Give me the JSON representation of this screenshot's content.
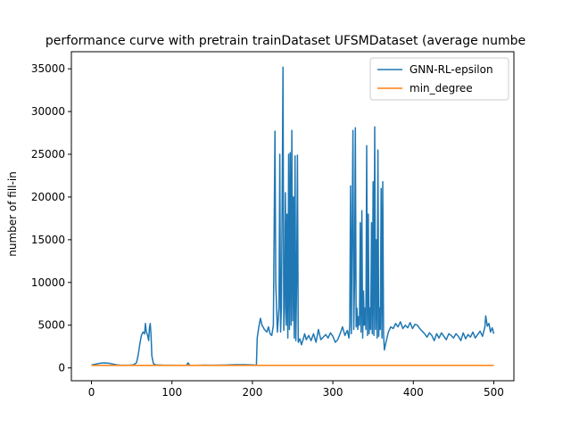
{
  "chart_data": {
    "type": "line",
    "title": "performance curve with pretrain trainDataset UFSMDataset (average numbe",
    "xlabel": "",
    "ylabel": "number of fill-in",
    "xlim": [
      -25,
      525
    ],
    "ylim": [
      -1500,
      37000
    ],
    "xticks": [
      0,
      100,
      200,
      300,
      400,
      500
    ],
    "yticks": [
      0,
      5000,
      10000,
      15000,
      20000,
      25000,
      30000,
      35000
    ],
    "grid": false,
    "legend_position": "top-right",
    "series": [
      {
        "name": "GNN-RL-epsilon",
        "color": "#1f77b4",
        "points": [
          [
            0,
            350
          ],
          [
            4,
            420
          ],
          [
            8,
            500
          ],
          [
            12,
            560
          ],
          [
            16,
            590
          ],
          [
            20,
            560
          ],
          [
            24,
            500
          ],
          [
            28,
            420
          ],
          [
            32,
            360
          ],
          [
            36,
            330
          ],
          [
            40,
            320
          ],
          [
            44,
            320
          ],
          [
            48,
            330
          ],
          [
            52,
            350
          ],
          [
            56,
            600
          ],
          [
            58,
            1500
          ],
          [
            60,
            2800
          ],
          [
            62,
            3800
          ],
          [
            64,
            4200
          ],
          [
            66,
            4000
          ],
          [
            67,
            5200
          ],
          [
            68,
            4300
          ],
          [
            70,
            3700
          ],
          [
            71,
            3200
          ],
          [
            72,
            4700
          ],
          [
            73,
            5200
          ],
          [
            74,
            3800
          ],
          [
            75,
            1400
          ],
          [
            77,
            500
          ],
          [
            80,
            350
          ],
          [
            90,
            320
          ],
          [
            100,
            320
          ],
          [
            110,
            300
          ],
          [
            118,
            310
          ],
          [
            120,
            600
          ],
          [
            122,
            300
          ],
          [
            130,
            310
          ],
          [
            140,
            330
          ],
          [
            150,
            320
          ],
          [
            160,
            330
          ],
          [
            170,
            350
          ],
          [
            180,
            380
          ],
          [
            190,
            380
          ],
          [
            200,
            360
          ],
          [
            205,
            320
          ],
          [
            206,
            3500
          ],
          [
            208,
            4800
          ],
          [
            210,
            5800
          ],
          [
            212,
            5000
          ],
          [
            215,
            4500
          ],
          [
            218,
            4200
          ],
          [
            220,
            4800
          ],
          [
            222,
            4000
          ],
          [
            224,
            3800
          ],
          [
            226,
            5000
          ],
          [
            228,
            27700
          ],
          [
            229,
            10000
          ],
          [
            231,
            4200
          ],
          [
            233,
            7000
          ],
          [
            234,
            25000
          ],
          [
            235,
            4200
          ],
          [
            236,
            7000
          ],
          [
            237,
            20000
          ],
          [
            238,
            35200
          ],
          [
            239,
            4400
          ],
          [
            240,
            7000
          ],
          [
            241,
            20500
          ],
          [
            242,
            5000
          ],
          [
            243,
            18000
          ],
          [
            244,
            3500
          ],
          [
            245,
            25000
          ],
          [
            246,
            4500
          ],
          [
            247,
            25200
          ],
          [
            248,
            5000
          ],
          [
            249,
            27800
          ],
          [
            250,
            5500
          ],
          [
            251,
            20000
          ],
          [
            252,
            3500
          ],
          [
            253,
            24800
          ],
          [
            254,
            3200
          ],
          [
            255,
            10000
          ],
          [
            256,
            24900
          ],
          [
            257,
            3000
          ],
          [
            259,
            3400
          ],
          [
            261,
            2700
          ],
          [
            263,
            3300
          ],
          [
            265,
            4000
          ],
          [
            267,
            3300
          ],
          [
            270,
            3800
          ],
          [
            273,
            3200
          ],
          [
            276,
            4000
          ],
          [
            279,
            3000
          ],
          [
            282,
            4500
          ],
          [
            285,
            3300
          ],
          [
            288,
            3600
          ],
          [
            291,
            3900
          ],
          [
            294,
            3500
          ],
          [
            297,
            4100
          ],
          [
            300,
            3700
          ],
          [
            303,
            3000
          ],
          [
            306,
            3300
          ],
          [
            309,
            4000
          ],
          [
            312,
            4800
          ],
          [
            315,
            3800
          ],
          [
            318,
            4400
          ],
          [
            320,
            3500
          ],
          [
            321,
            5000
          ],
          [
            322,
            21300
          ],
          [
            323,
            4000
          ],
          [
            325,
            27800
          ],
          [
            326,
            4500
          ],
          [
            327,
            10000
          ],
          [
            328,
            28100
          ],
          [
            329,
            4800
          ],
          [
            330,
            7000
          ],
          [
            331,
            4500
          ],
          [
            332,
            6000
          ],
          [
            333,
            5000
          ],
          [
            334,
            17000
          ],
          [
            335,
            4200
          ],
          [
            336,
            18400
          ],
          [
            337,
            3500
          ],
          [
            338,
            9000
          ],
          [
            339,
            5000
          ],
          [
            340,
            7000
          ],
          [
            341,
            4500
          ],
          [
            342,
            26000
          ],
          [
            343,
            3800
          ],
          [
            344,
            18000
          ],
          [
            345,
            4000
          ],
          [
            346,
            7000
          ],
          [
            347,
            4500
          ],
          [
            348,
            17000
          ],
          [
            349,
            4000
          ],
          [
            350,
            21800
          ],
          [
            351,
            3800
          ],
          [
            352,
            28200
          ],
          [
            353,
            4500
          ],
          [
            354,
            15000
          ],
          [
            355,
            3500
          ],
          [
            356,
            25500
          ],
          [
            357,
            3700
          ],
          [
            358,
            7000
          ],
          [
            359,
            4500
          ],
          [
            360,
            21000
          ],
          [
            361,
            3500
          ],
          [
            362,
            21800
          ],
          [
            363,
            4000
          ],
          [
            364,
            2100
          ],
          [
            366,
            3000
          ],
          [
            369,
            4200
          ],
          [
            372,
            4800
          ],
          [
            375,
            4600
          ],
          [
            378,
            5200
          ],
          [
            381,
            4800
          ],
          [
            384,
            5400
          ],
          [
            387,
            4600
          ],
          [
            390,
            5000
          ],
          [
            393,
            4700
          ],
          [
            396,
            5300
          ],
          [
            399,
            4600
          ],
          [
            402,
            5100
          ],
          [
            405,
            5000
          ],
          [
            408,
            4600
          ],
          [
            411,
            4300
          ],
          [
            414,
            4000
          ],
          [
            417,
            3600
          ],
          [
            420,
            4100
          ],
          [
            423,
            3800
          ],
          [
            426,
            3200
          ],
          [
            429,
            4000
          ],
          [
            432,
            3500
          ],
          [
            435,
            4100
          ],
          [
            438,
            3700
          ],
          [
            441,
            3300
          ],
          [
            444,
            4000
          ],
          [
            447,
            3800
          ],
          [
            450,
            3500
          ],
          [
            453,
            4000
          ],
          [
            456,
            3700
          ],
          [
            459,
            3200
          ],
          [
            462,
            4100
          ],
          [
            465,
            3400
          ],
          [
            468,
            3900
          ],
          [
            471,
            3600
          ],
          [
            474,
            4200
          ],
          [
            477,
            3500
          ],
          [
            480,
            3900
          ],
          [
            483,
            4300
          ],
          [
            486,
            3700
          ],
          [
            489,
            4800
          ],
          [
            490,
            6100
          ],
          [
            492,
            4900
          ],
          [
            494,
            5200
          ],
          [
            496,
            4200
          ],
          [
            498,
            4700
          ],
          [
            500,
            4000
          ]
        ]
      },
      {
        "name": "min_degree",
        "color": "#ff7f0e",
        "points": [
          [
            0,
            300
          ],
          [
            20,
            300
          ],
          [
            40,
            305
          ],
          [
            60,
            300
          ],
          [
            80,
            300
          ],
          [
            100,
            300
          ],
          [
            120,
            300
          ],
          [
            140,
            300
          ],
          [
            160,
            300
          ],
          [
            180,
            300
          ],
          [
            200,
            300
          ],
          [
            220,
            300
          ],
          [
            240,
            300
          ],
          [
            260,
            300
          ],
          [
            280,
            300
          ],
          [
            300,
            300
          ],
          [
            320,
            300
          ],
          [
            340,
            300
          ],
          [
            360,
            300
          ],
          [
            380,
            300
          ],
          [
            400,
            300
          ],
          [
            420,
            300
          ],
          [
            440,
            300
          ],
          [
            460,
            300
          ],
          [
            480,
            300
          ],
          [
            500,
            300
          ]
        ]
      }
    ]
  }
}
